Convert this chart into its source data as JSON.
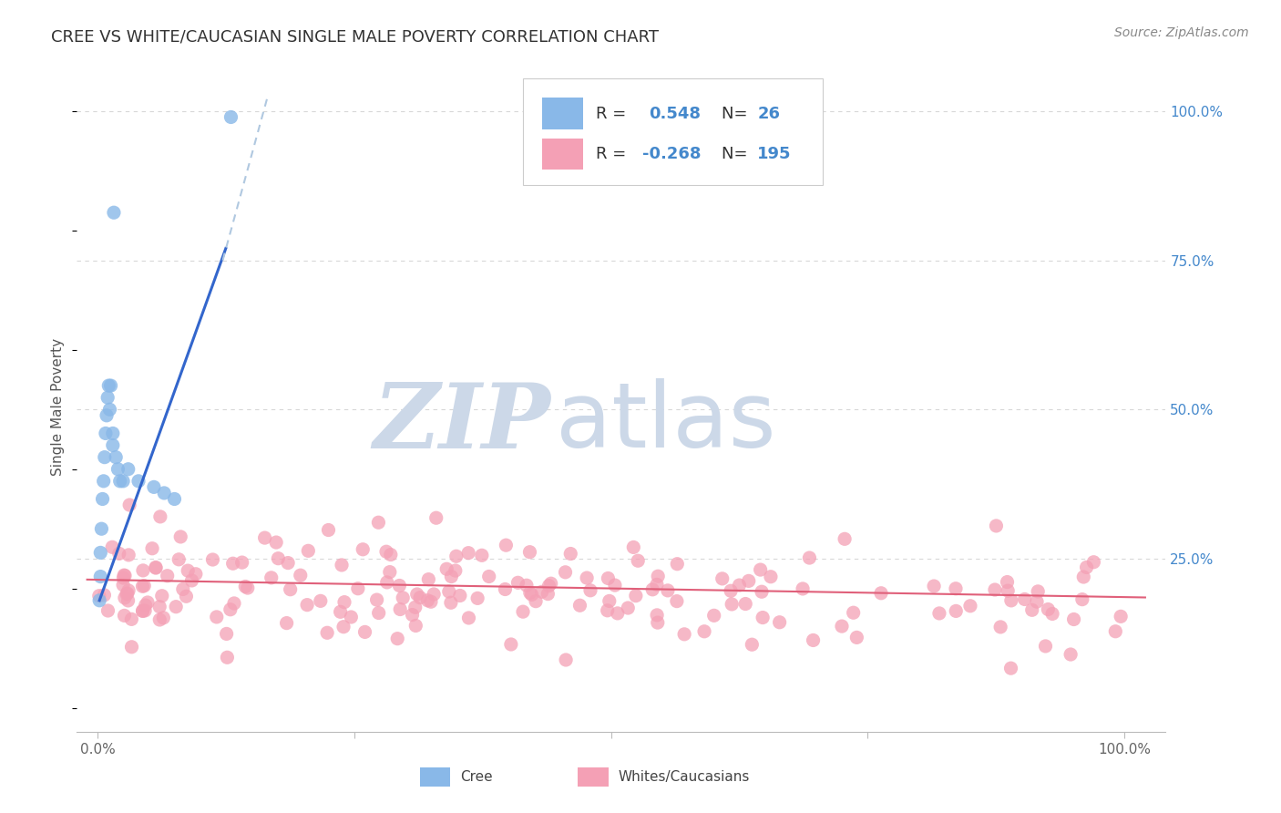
{
  "title": "CREE VS WHITE/CAUCASIAN SINGLE MALE POVERTY CORRELATION CHART",
  "source": "Source: ZipAtlas.com",
  "ylabel": "Single Male Poverty",
  "legend_cree_R": "0.548",
  "legend_cree_N": "26",
  "legend_white_R": "-0.268",
  "legend_white_N": "195",
  "cree_color": "#89b8e8",
  "white_color": "#f4a0b5",
  "cree_line_color": "#3366cc",
  "white_line_color": "#e0607a",
  "dash_color": "#b0c8e0",
  "background_color": "#ffffff",
  "grid_color": "#d8d8d8",
  "watermark_zip_color": "#ccd8e8",
  "watermark_atlas_color": "#ccd8e8",
  "right_tick_color": "#4488cc",
  "title_color": "#333333",
  "source_color": "#888888",
  "ylabel_color": "#555555",
  "xtick_color": "#666666",
  "bottom_legend_color": "#444444"
}
